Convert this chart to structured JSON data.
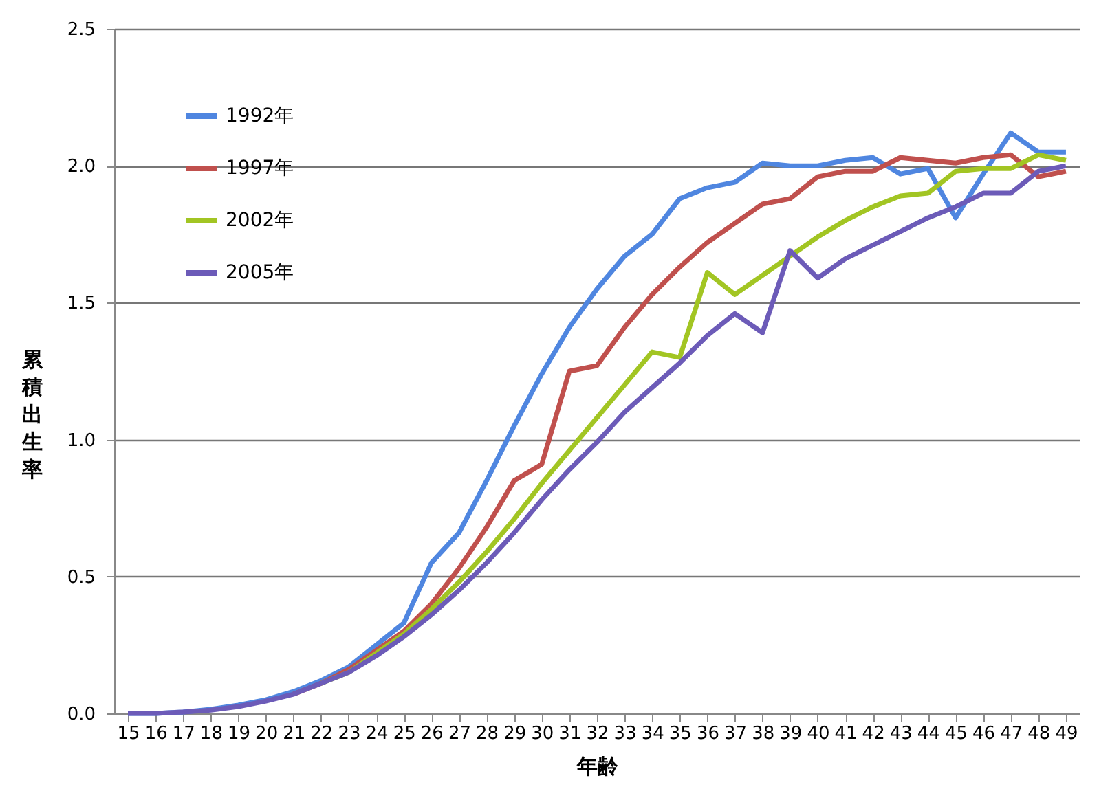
{
  "chart_data": {
    "type": "line",
    "xlabel": "年齢",
    "ylabel": "累積出生率",
    "categories": [
      "15",
      "16",
      "17",
      "18",
      "19",
      "20",
      "21",
      "22",
      "23",
      "24",
      "25",
      "26",
      "27",
      "28",
      "29",
      "30",
      "31",
      "32",
      "33",
      "34",
      "35",
      "36",
      "37",
      "38",
      "39",
      "40",
      "41",
      "42",
      "43",
      "44",
      "45",
      "46",
      "47",
      "48",
      "49"
    ],
    "ylim": [
      0,
      2.5
    ],
    "yticks": [
      {
        "value": 0,
        "label": "0.0"
      },
      {
        "value": 0.5,
        "label": "0.5"
      },
      {
        "value": 1,
        "label": "1.0"
      },
      {
        "value": 1.5,
        "label": "1.5"
      },
      {
        "value": 2,
        "label": "2.0"
      },
      {
        "value": 2.5,
        "label": "2.5"
      }
    ],
    "grid": "y",
    "legend": "top left",
    "marker": "none",
    "line_style": "solid",
    "series": [
      {
        "name": "1992年",
        "color": "#4f86e0",
        "values": [
          0,
          0,
          0.005,
          0.015,
          0.03,
          0.05,
          0.08,
          0.12,
          0.17,
          0.25,
          0.33,
          0.55,
          0.66,
          0.85,
          1.05,
          1.24,
          1.41,
          1.55,
          1.67,
          1.75,
          1.88,
          1.92,
          1.94,
          2.01,
          2.0,
          2.0,
          2.02,
          2.03,
          1.97,
          1.99,
          1.81,
          1.97,
          2.12,
          2.05,
          2.05
        ]
      },
      {
        "name": "1997年",
        "color": "#c0504d",
        "values": [
          null,
          null,
          null,
          null,
          null,
          null,
          0.07,
          0.11,
          0.16,
          0.23,
          0.3,
          0.4,
          0.53,
          0.68,
          0.85,
          0.91,
          1.25,
          1.27,
          1.41,
          1.53,
          1.63,
          1.72,
          1.79,
          1.86,
          1.88,
          1.96,
          1.98,
          1.98,
          2.03,
          2.02,
          2.01,
          2.03,
          2.04,
          1.96,
          1.98
        ]
      },
      {
        "name": "2002年",
        "color": "#a2c523",
        "values": [
          null,
          null,
          null,
          null,
          null,
          null,
          null,
          0.11,
          0.15,
          0.22,
          0.29,
          0.38,
          0.48,
          0.59,
          0.71,
          0.84,
          0.96,
          1.08,
          1.2,
          1.32,
          1.3,
          1.61,
          1.53,
          1.6,
          1.67,
          1.74,
          1.8,
          1.85,
          1.89,
          1.9,
          1.98,
          1.99,
          1.99,
          2.04,
          2.02
        ]
      },
      {
        "name": "2005年",
        "color": "#6c5bb8",
        "values": [
          0,
          0,
          0.005,
          0.012,
          0.025,
          0.045,
          0.07,
          0.11,
          0.15,
          0.21,
          0.28,
          0.36,
          0.45,
          0.55,
          0.66,
          0.78,
          0.89,
          0.99,
          1.1,
          1.19,
          1.28,
          1.38,
          1.46,
          1.39,
          1.69,
          1.59,
          1.66,
          1.71,
          1.76,
          1.81,
          1.85,
          1.9,
          1.9,
          1.98,
          2.0
        ]
      }
    ]
  }
}
